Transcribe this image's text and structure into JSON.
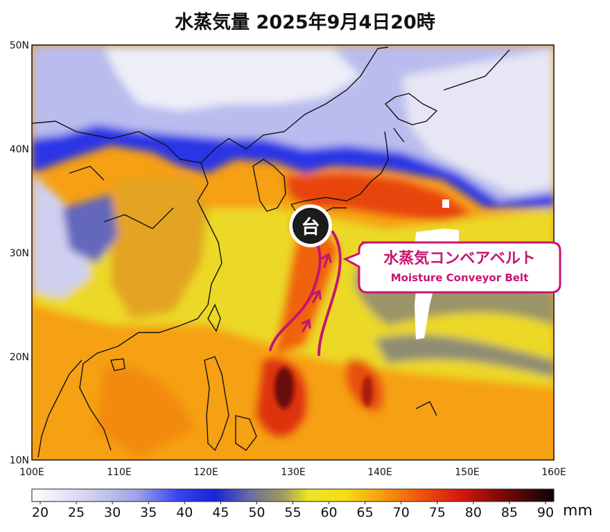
{
  "title": "水蒸気量 2025年9月4日20時",
  "axes": {
    "lat_labels": [
      "50N",
      "40N",
      "30N",
      "20N",
      "10N"
    ],
    "lon_labels": [
      "100E",
      "110E",
      "120E",
      "130E",
      "140E",
      "150E",
      "160E"
    ]
  },
  "typhoon": {
    "symbol": "台",
    "lon": 132,
    "lat": 32.5
  },
  "callout": {
    "title_ja": "水蒸気コンベアベルト",
    "title_en": "Moisture Conveyor Belt",
    "color": "#c41672"
  },
  "colorbar": {
    "ticks": [
      "20",
      "25",
      "30",
      "35",
      "40",
      "45",
      "50",
      "55",
      "60",
      "65",
      "70",
      "75",
      "80",
      "85",
      "90"
    ],
    "unit": "mm",
    "range": [
      20,
      90
    ]
  },
  "colors": {
    "low": "#f4f4fb",
    "lavender": "#b6b8ec",
    "blue": "#1c2af0",
    "olive": "#8e8e60",
    "yellow": "#f4ee22",
    "orange": "#f59a10",
    "red": "#e42a0c",
    "darkred": "#7a0a08",
    "black": "#111111"
  }
}
